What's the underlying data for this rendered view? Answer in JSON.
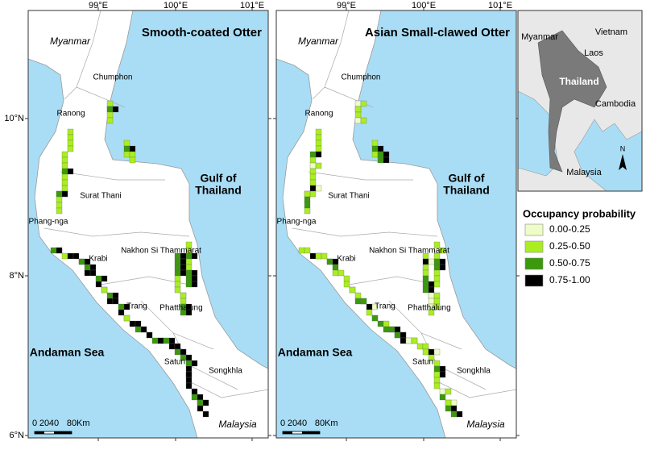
{
  "panels": [
    {
      "title": "Smooth-coated Otter"
    },
    {
      "title": "Asian Small-clawed Otter"
    }
  ],
  "x_ticks": [
    "99°E",
    "100°E",
    "101°E"
  ],
  "y_ticks": [
    "10°N",
    "8°N",
    "6°N"
  ],
  "places": [
    "Myanmar",
    "Chumphon",
    "Ranong",
    "Surat Thani",
    "Phang-nga",
    "Krabi",
    "Nakhon Si Thammarat",
    "Trang",
    "Phatthalung",
    "Satun",
    "Songkhla",
    "Malaysia"
  ],
  "seas": {
    "andaman": "Andaman Sea",
    "gulf": [
      "Gulf of",
      "Thailand"
    ]
  },
  "scale_bar": {
    "ticks": [
      "0",
      "20",
      "40",
      "80"
    ],
    "unit": "Km"
  },
  "legend": {
    "title": "Occupancy probability",
    "items": [
      {
        "label": "0.00-0.25",
        "color": "#eefcc8"
      },
      {
        "label": "0.25-0.50",
        "color": "#aaee22"
      },
      {
        "label": "0.50-0.75",
        "color": "#3a9a0c"
      },
      {
        "label": "0.75-1.00",
        "color": "#000000"
      }
    ]
  },
  "inset": {
    "labels": [
      "Myanmar",
      "Vietnam",
      "Laos",
      "Thailand",
      "Cambodia",
      "Malaysia"
    ],
    "north": "N"
  }
}
